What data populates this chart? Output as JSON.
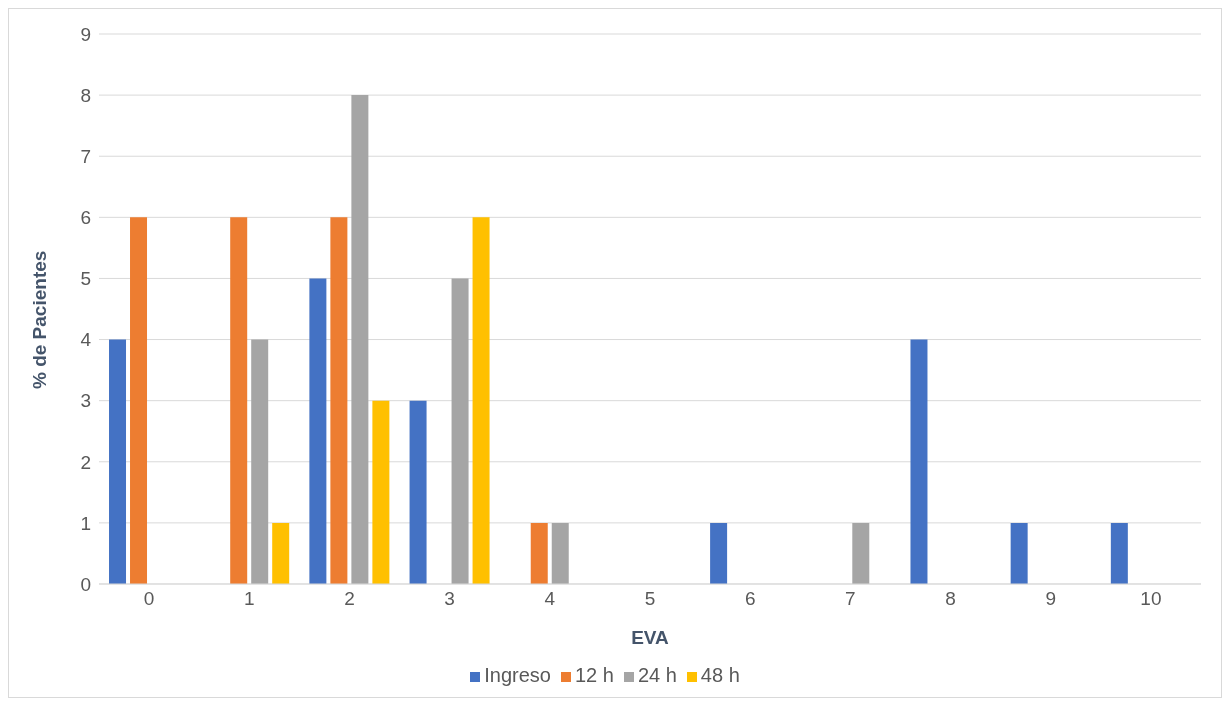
{
  "chart_data": {
    "type": "bar",
    "xlabel": "EVA",
    "ylabel": "% de Pacientes",
    "categories": [
      "0",
      "1",
      "2",
      "3",
      "4",
      "5",
      "6",
      "7",
      "8",
      "9",
      "10"
    ],
    "series": [
      {
        "name": "Ingreso",
        "color": "#4472c4",
        "values": [
          4,
          0,
          5,
          3,
          0,
          0,
          1,
          0,
          4,
          1,
          1
        ]
      },
      {
        "name": "12 h",
        "color": "#ed7d31",
        "values": [
          6,
          6,
          6,
          0,
          1,
          0,
          0,
          0,
          0,
          0,
          0
        ]
      },
      {
        "name": "24 h",
        "color": "#a5a5a5",
        "values": [
          0,
          4,
          8,
          5,
          1,
          0,
          0,
          1,
          0,
          0,
          0
        ]
      },
      {
        "name": "48 h",
        "color": "#ffc000",
        "values": [
          0,
          1,
          3,
          6,
          0,
          0,
          0,
          0,
          0,
          0,
          0
        ]
      }
    ],
    "ylim": [
      0,
      9
    ],
    "yticks": [
      0,
      1,
      2,
      3,
      4,
      5,
      6,
      7,
      8,
      9
    ],
    "grid": "y",
    "legend": "bottom"
  }
}
